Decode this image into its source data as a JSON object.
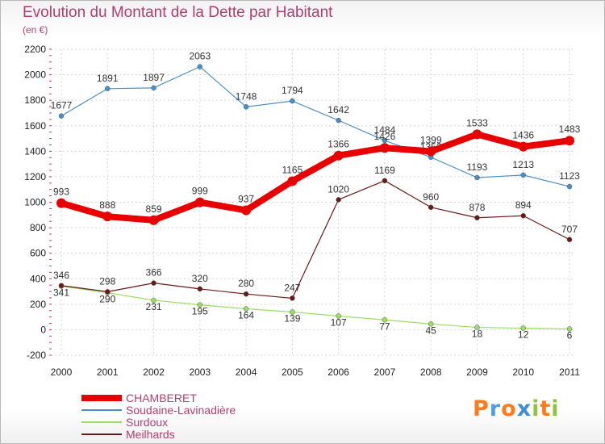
{
  "title": "Evolution du Montant de la Dette par Habitant",
  "subtitle": "(en €)",
  "logo": {
    "letters": [
      "P",
      "r",
      "o",
      "x",
      "i",
      "t",
      "i"
    ],
    "colors": [
      "#ff7a1a",
      "#4aa0e6",
      "#ff7a1a",
      "#3c8fd6",
      "#8cc63f",
      "#ff7a1a",
      "#8cc63f"
    ]
  },
  "chart_data": {
    "type": "line",
    "x": [
      "2000",
      "2001",
      "2002",
      "2003",
      "2004",
      "2005",
      "2006",
      "2007",
      "2008",
      "2009",
      "2010",
      "2011"
    ],
    "ylim": [
      -200,
      2200
    ],
    "yticks": [
      -200,
      0,
      200,
      400,
      600,
      800,
      1000,
      1200,
      1400,
      1600,
      1800,
      2000,
      2200
    ],
    "grid": true,
    "legend": "bottom-left",
    "series": [
      {
        "name": "Soudaine-Lavinadière",
        "color": "#4a90c8",
        "values": [
          1677,
          1891,
          1897,
          2063,
          1748,
          1794,
          1642,
          1484,
          1353,
          1193,
          1213,
          1123
        ]
      },
      {
        "name": "Surdoux",
        "color": "#99dd66",
        "values": [
          341,
          290,
          231,
          195,
          164,
          139,
          107,
          77,
          45,
          18,
          12,
          6
        ]
      },
      {
        "name": "Meilhards",
        "color": "#6b1818",
        "values": [
          346,
          298,
          366,
          320,
          280,
          247,
          1020,
          1169,
          960,
          878,
          894,
          707
        ]
      },
      {
        "name": "CHAMBERET",
        "color": "#e80000",
        "values": [
          993,
          888,
          859,
          999,
          937,
          1165,
          1366,
          1426,
          1399,
          1533,
          1436,
          1483
        ]
      }
    ],
    "legend_order": [
      "CHAMBERET",
      "Soudaine-Lavinadière",
      "Surdoux",
      "Meilhards"
    ]
  }
}
